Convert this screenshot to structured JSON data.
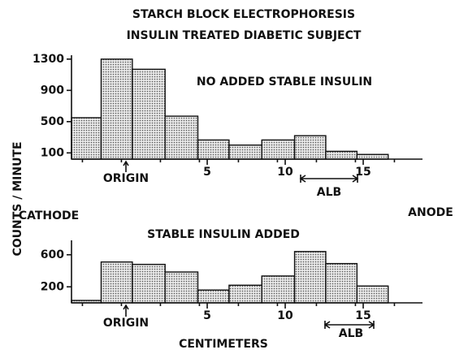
{
  "title": "STARCH BLOCK ELECTROPHORESIS",
  "subtitle": "INSULIN TREATED DIABETIC SUBJECT",
  "y_label": "COUNTS / MINUTE",
  "left_label": "CATHODE",
  "right_label": "ANODE",
  "chart_data": [
    {
      "type": "histogram",
      "annotation": "NO ADDED STABLE INSULIN",
      "origin_label": "ORIGIN",
      "band_label": "ALB",
      "color": "#c4c4c4",
      "bins": [
        -3.7,
        -1.8,
        0.2,
        2.3,
        4.4,
        6.4,
        8.5,
        10.6,
        12.6,
        14.6,
        16.6
      ],
      "values": [
        550,
        1300,
        1170,
        570,
        265,
        200,
        265,
        320,
        120,
        80
      ],
      "xlim": [
        -3.7,
        18.8
      ],
      "xticks": [
        5,
        10,
        15
      ],
      "ylim": [
        20,
        1350
      ],
      "yticks": [
        100,
        500,
        900,
        1300
      ]
    },
    {
      "type": "histogram",
      "annotation": "STABLE INSULIN ADDED",
      "origin_label": "ORIGIN",
      "band_label": "ALB",
      "x_label": "CENTIMETERS",
      "color": "#c4c4c4",
      "bins": [
        -3.7,
        -1.8,
        0.2,
        2.3,
        4.4,
        6.4,
        8.5,
        10.6,
        12.6,
        14.6,
        16.6
      ],
      "values": [
        30,
        510,
        480,
        385,
        160,
        220,
        335,
        640,
        490,
        210
      ],
      "xlim": [
        -3.7,
        18.8
      ],
      "xticks": [
        5,
        10,
        15
      ],
      "ylim": [
        0,
        780
      ],
      "yticks": [
        200,
        600
      ]
    }
  ]
}
